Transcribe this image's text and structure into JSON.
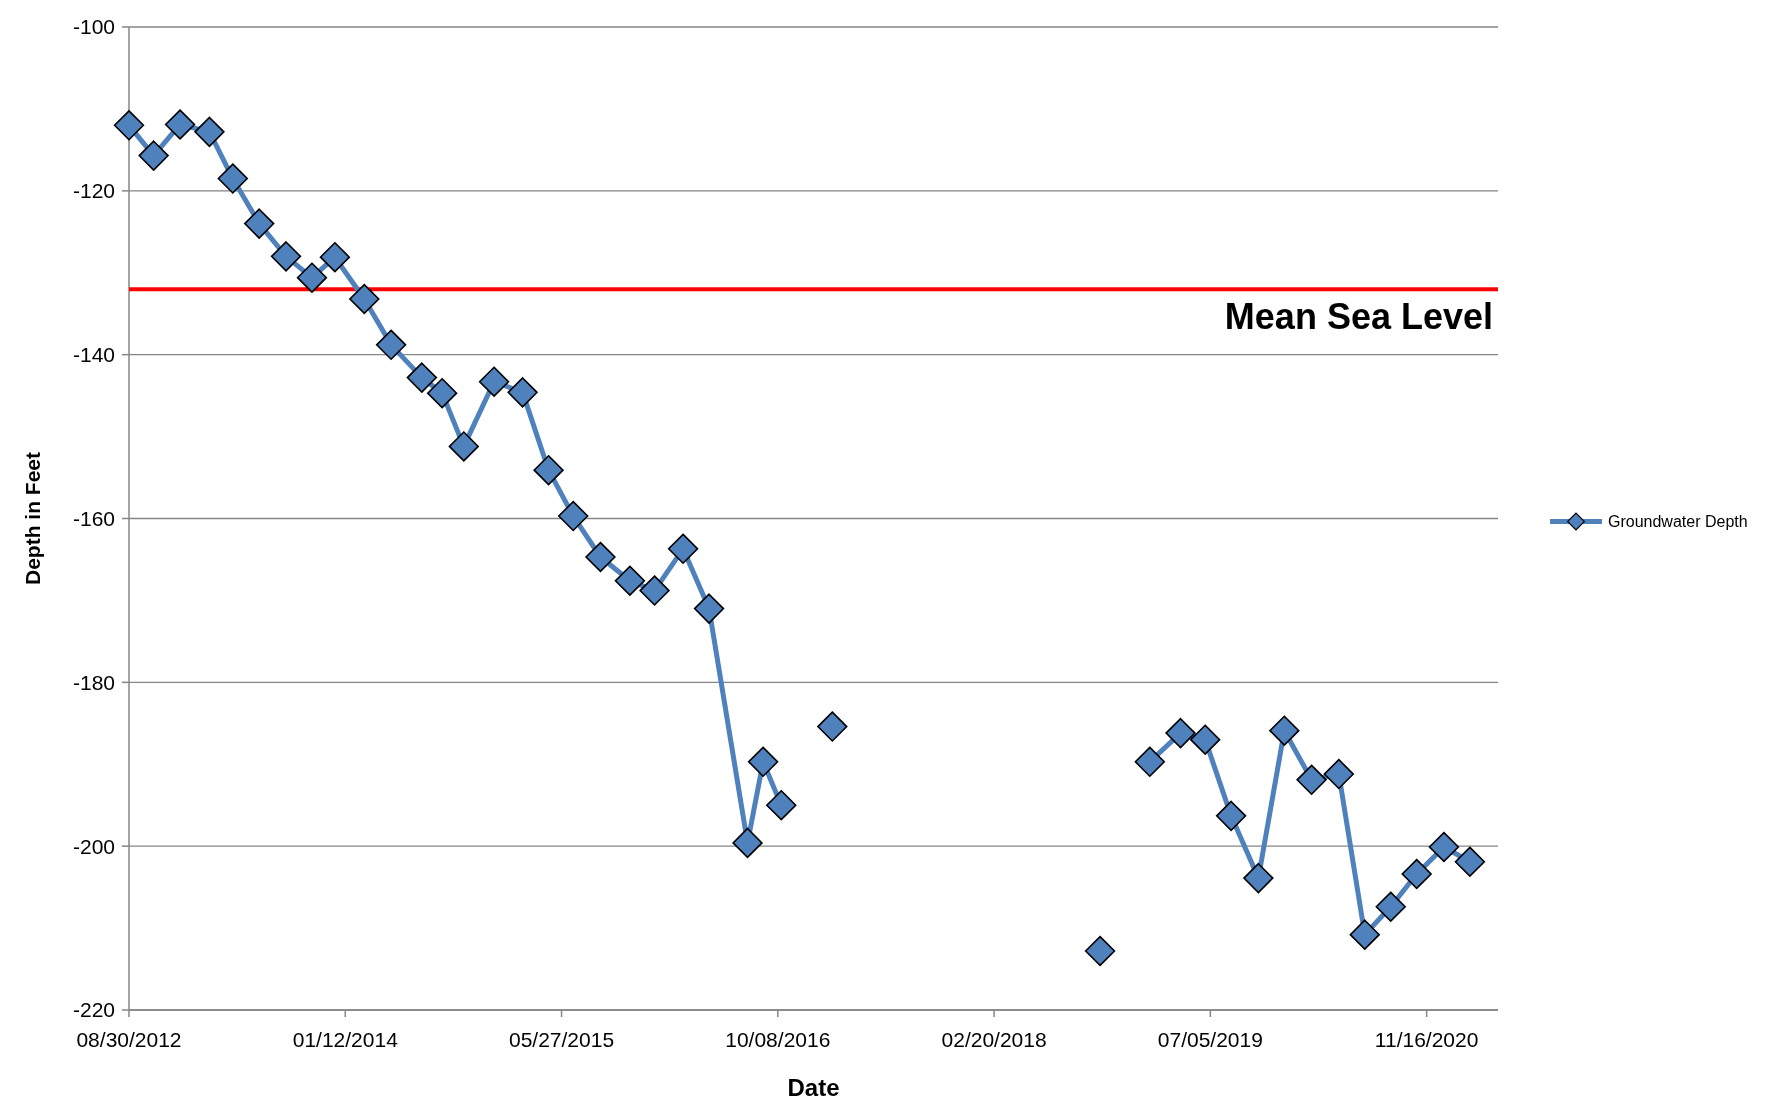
{
  "chart_data": {
    "type": "line",
    "xlabel": "Date",
    "ylabel": "Depth in Feet",
    "x": [
      "2012-08-30",
      "2012-10-26",
      "2012-12-26",
      "2013-03-04",
      "2013-04-27",
      "2013-06-27",
      "2013-08-28",
      "2013-10-27",
      "2013-12-19",
      "2014-02-25",
      "2014-04-28",
      "2014-07-08",
      "2014-08-24",
      "2014-10-13",
      "2014-12-22",
      "2015-02-26",
      "2015-04-27",
      "2015-06-23",
      "2015-08-25",
      "2015-11-01",
      "2015-12-28",
      "2016-03-03",
      "2016-05-02",
      "2016-07-30",
      "2016-09-04",
      "2016-10-16",
      "2016-12-15",
      "2017-02-11",
      "2018-01-01",
      "2018-10-23",
      "2018-12-15",
      "2019-02-15",
      "2019-04-27",
      "2019-06-23",
      "2019-08-22",
      "2019-10-24",
      "2019-12-23",
      "2020-02-24",
      "2020-04-27",
      "2020-06-26",
      "2020-08-25",
      "2020-10-24",
      "2020-12-26",
      "2021-02-24"
    ],
    "series": [
      {
        "name": "Groundwater Depth",
        "color": "#4f81bd",
        "values": [
          -112.0,
          -115.7,
          -111.9,
          -112.8,
          -118.5,
          -124.0,
          -128.0,
          -130.6,
          -128.1,
          -133.2,
          -138.8,
          -142.8,
          -144.7,
          -151.2,
          -143.3,
          -144.6,
          -154.1,
          -159.7,
          -164.7,
          -167.6,
          -168.8,
          -163.7,
          -171.0,
          -199.6,
          -189.7,
          -195.0,
          null,
          -185.4,
          null,
          -212.8,
          null,
          -189.7,
          -186.2,
          -187.0,
          -196.3,
          -203.9,
          -185.9,
          -191.9,
          -191.2,
          -210.8,
          -207.4,
          -203.4,
          -200.1,
          -201.9
        ]
      }
    ],
    "xlim": [
      "2012-08-30",
      "2021-04-30"
    ],
    "xticks": [
      {
        "value": "2012-08-30",
        "label": "08/30/2012"
      },
      {
        "value": "2014-01-12",
        "label": "01/12/2014"
      },
      {
        "value": "2015-05-27",
        "label": "05/27/2015"
      },
      {
        "value": "2016-10-08",
        "label": "10/08/2016"
      },
      {
        "value": "2018-02-20",
        "label": "02/20/2018"
      },
      {
        "value": "2019-07-05",
        "label": "07/05/2019"
      },
      {
        "value": "2020-11-16",
        "label": "11/16/2020"
      }
    ],
    "ylim": [
      -220,
      -100
    ],
    "yticks": [
      -220,
      -200,
      -180,
      -160,
      -140,
      -120,
      -100
    ],
    "ref_lines": [
      {
        "axis": "y",
        "value": -132,
        "label": "Mean Sea Level",
        "color": "#ff0000"
      }
    ],
    "grid": "y",
    "legend": "right",
    "marker": "diamond",
    "line_style": "solid"
  }
}
